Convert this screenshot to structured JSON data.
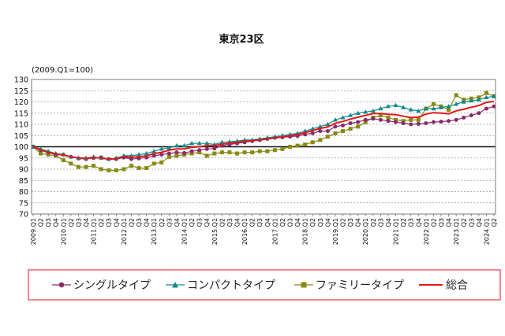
{
  "chart_data": {
    "type": "line",
    "title": "東京23区",
    "ylabel": "(2009.Q1=100)",
    "ylim": [
      70,
      130
    ],
    "yticks": [
      70,
      75,
      80,
      85,
      90,
      95,
      100,
      105,
      110,
      115,
      120,
      125,
      130
    ],
    "x": [
      "2009.Q1",
      "Q2",
      "Q3",
      "Q4",
      "2010.Q1",
      "Q2",
      "Q3",
      "Q4",
      "2011.Q1",
      "Q2",
      "Q3",
      "Q4",
      "2012.Q1",
      "Q2",
      "Q3",
      "Q4",
      "2013.Q1",
      "Q2",
      "Q3",
      "Q4",
      "2014.Q1",
      "Q2",
      "Q3",
      "Q4",
      "2015.Q1",
      "Q2",
      "Q3",
      "Q4",
      "2016.Q1",
      "Q2",
      "Q3",
      "Q4",
      "2017.Q1",
      "Q2",
      "Q3",
      "Q4",
      "2018.Q1",
      "Q2",
      "Q3",
      "Q4",
      "2019.Q1",
      "Q2",
      "Q3",
      "Q4",
      "2020.Q1",
      "Q2",
      "Q3",
      "Q4",
      "2021.Q1",
      "Q2",
      "Q3",
      "Q4",
      "2022.Q1",
      "Q2",
      "Q3",
      "Q4",
      "2023.Q1",
      "Q2",
      "Q3",
      "Q4",
      "2024.Q1",
      "Q2"
    ],
    "grid": "horizontal",
    "reference_line": 100,
    "legend_position": "bottom",
    "series": [
      {
        "name": "シングルタイプ",
        "color": "#8b2a6b",
        "marker": "circle",
        "values": [
          100.0,
          98.5,
          97.5,
          96.5,
          96.5,
          95.5,
          94.8,
          94.5,
          95.0,
          95.3,
          94.5,
          94.5,
          95.2,
          94.5,
          94.8,
          95.2,
          96.0,
          96.5,
          97.0,
          97.5,
          97.2,
          98.0,
          98.5,
          99.0,
          99.2,
          100.5,
          101.0,
          101.5,
          102.0,
          102.5,
          103.0,
          103.5,
          104.0,
          104.2,
          104.5,
          104.8,
          105.5,
          106.0,
          107.0,
          107.0,
          109.0,
          109.5,
          110.5,
          111.0,
          112.0,
          112.5,
          112.0,
          111.5,
          111.0,
          110.5,
          110.0,
          110.2,
          110.5,
          111.0,
          111.2,
          111.5,
          112.0,
          113.0,
          114.0,
          115.0,
          117.0,
          118.0
        ]
      },
      {
        "name": "コンパクトタイプ",
        "color": "#138a8a",
        "marker": "triangle",
        "values": [
          100.0,
          99.0,
          98.0,
          97.0,
          96.5,
          95.5,
          95.0,
          95.0,
          95.5,
          95.0,
          94.5,
          95.0,
          96.0,
          96.0,
          96.5,
          97.0,
          98.0,
          99.0,
          99.5,
          100.5,
          100.5,
          101.5,
          101.5,
          101.5,
          101.0,
          102.0,
          102.2,
          102.5,
          103.0,
          103.0,
          103.5,
          104.0,
          104.5,
          105.0,
          105.5,
          106.0,
          107.0,
          108.0,
          109.0,
          110.0,
          112.0,
          113.0,
          114.0,
          115.0,
          115.5,
          116.0,
          117.0,
          118.0,
          118.5,
          117.5,
          116.5,
          116.0,
          117.0,
          117.0,
          117.5,
          118.0,
          119.0,
          120.0,
          120.5,
          121.0,
          122.0,
          122.5
        ]
      },
      {
        "name": "ファミリータイプ",
        "color": "#888a10",
        "marker": "square",
        "values": [
          100.0,
          97.0,
          96.5,
          96.0,
          94.0,
          92.5,
          91.0,
          91.0,
          91.5,
          90.0,
          89.5,
          89.5,
          90.0,
          91.5,
          90.5,
          90.5,
          92.5,
          93.0,
          95.5,
          96.0,
          96.5,
          97.0,
          97.5,
          96.0,
          97.0,
          97.5,
          97.5,
          97.0,
          97.5,
          97.5,
          98.0,
          98.0,
          98.5,
          99.0,
          100.0,
          100.5,
          101.0,
          102.0,
          103.0,
          104.5,
          106.0,
          107.0,
          108.0,
          109.0,
          111.0,
          113.0,
          114.0,
          113.0,
          112.0,
          111.5,
          112.0,
          112.0,
          117.0,
          119.0,
          118.0,
          116.5,
          123.0,
          121.0,
          121.5,
          122.0,
          124.0,
          122.5
        ]
      },
      {
        "name": "総合",
        "color": "#e01818",
        "marker": "none",
        "values": [
          100.0,
          98.5,
          97.5,
          96.8,
          96.3,
          95.5,
          95.0,
          94.8,
          95.2,
          95.0,
          94.5,
          94.7,
          95.5,
          95.3,
          95.5,
          96.0,
          97.0,
          97.5,
          98.5,
          99.0,
          99.0,
          99.8,
          100.0,
          100.5,
          100.5,
          101.2,
          101.6,
          102.0,
          102.5,
          102.7,
          103.1,
          103.5,
          104.0,
          104.4,
          104.9,
          105.4,
          106.3,
          107.2,
          108.2,
          108.8,
          110.5,
          111.3,
          112.3,
          113.2,
          114.0,
          114.8,
          114.8,
          114.5,
          114.3,
          113.6,
          113.0,
          113.2,
          114.6,
          115.2,
          115.0,
          114.7,
          116.0,
          116.7,
          117.6,
          118.4,
          119.8,
          120.2
        ]
      }
    ]
  }
}
